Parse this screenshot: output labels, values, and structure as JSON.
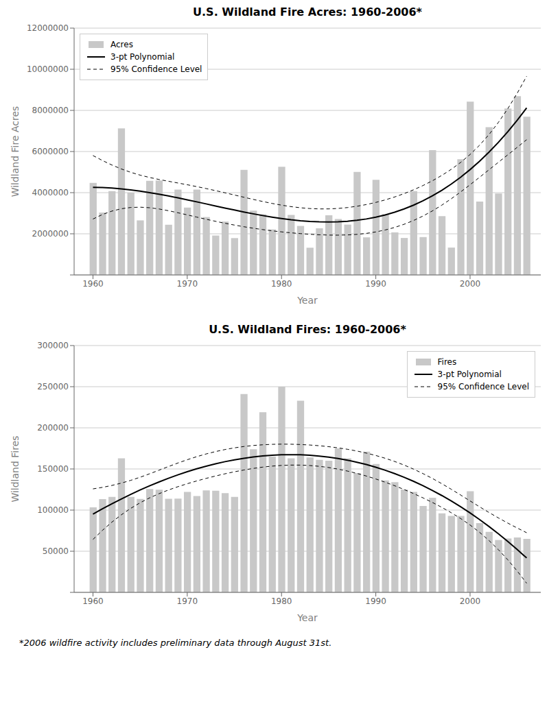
{
  "chart_data": [
    {
      "type": "bar",
      "title": "U.S. Wildland Fire Acres:  1960-2006*",
      "x_label": "Year",
      "y_label": "Wildland Fire Acres",
      "x": [
        1960,
        1961,
        1962,
        1963,
        1964,
        1965,
        1966,
        1967,
        1968,
        1969,
        1970,
        1971,
        1972,
        1973,
        1974,
        1975,
        1976,
        1977,
        1978,
        1979,
        1980,
        1981,
        1982,
        1983,
        1984,
        1985,
        1986,
        1987,
        1988,
        1989,
        1990,
        1991,
        1992,
        1993,
        1994,
        1995,
        1996,
        1997,
        1998,
        1999,
        2000,
        2001,
        2002,
        2003,
        2004,
        2005,
        2006
      ],
      "xlim": [
        1958.0,
        2007.5
      ],
      "xticks": [
        1960,
        1970,
        1980,
        1990,
        2000
      ],
      "ylim": [
        0,
        12000000
      ],
      "yticks": [
        {
          "value": 0,
          "label": null
        },
        2000000,
        4000000,
        6000000,
        8000000,
        10000000,
        12000000
      ],
      "grid": true,
      "legend": "upper left",
      "series": [
        {
          "name": "Acres",
          "type": "bar",
          "color": "#c8c8c8",
          "values": [
            4478000,
            3036000,
            4076000,
            7124000,
            4000000,
            2652000,
            4574000,
            4595000,
            2440000,
            4150000,
            3278000,
            4146000,
            2813000,
            1915000,
            2594000,
            1791000,
            5109000,
            3127000,
            2949000,
            2213000,
            5260000,
            2917000,
            2382000,
            1323000,
            2266000,
            2896000,
            2719000,
            2447000,
            5009000,
            1827000,
            4621000,
            2953000,
            2069000,
            1797000,
            4073000,
            1840000,
            6065000,
            2856000,
            1329000,
            5626000,
            8422000,
            3570000,
            7184000,
            3960000,
            8095000,
            8689000,
            7690000
          ]
        },
        {
          "name": "3-pt Polynomial",
          "type": "line",
          "color": "#000000",
          "line_style": "solid",
          "values": [
            4260540,
            4249540,
            4224060,
            4185370,
            4134760,
            4073500,
            4002860,
            3924120,
            3838540,
            3747410,
            3652000,
            3553600,
            3453450,
            3352850,
            3253070,
            3155370,
            3061050,
            2971370,
            2887610,
            2811030,
            2742920,
            2684550,
            2637190,
            2602120,
            2580610,
            2573940,
            2583390,
            2610210,
            2655700,
            2721120,
            2807760,
            2916880,
            3049760,
            3207660,
            3391880,
            3603680,
            3844340,
            4115130,
            4417320,
            4752190,
            5121020,
            5525080,
            5965640,
            6443980,
            6961370,
            7519090,
            8118410
          ]
        },
        {
          "name": "95% Confidence Level",
          "type": "line",
          "color": "#000000",
          "line_style": "dashed",
          "upper": [
            5803840,
            5562840,
            5345560,
            5154070,
            4989860,
            4852500,
            4738460,
            4641420,
            4554240,
            4470210,
            4384600,
            4294600,
            4199250,
            4098650,
            3993870,
            3886370,
            3778350,
            3672170,
            3570610,
            3476330,
            3392320,
            3321250,
            3265690,
            3227820,
            3209110,
            3210640,
            3232790,
            3275510,
            3338700,
            3421920,
            3525060,
            3647880,
            3790560,
            3953460,
            4137680,
            4344680,
            4576940,
            4837930,
            5133020,
            5469490,
            5856620,
            6304080,
            6820740,
            7412680,
            8082870,
            8832390,
            9661710
          ],
          "lower": [
            2717240,
            2936240,
            3102560,
            3216670,
            3279660,
            3294500,
            3267260,
            3206820,
            3122840,
            3024610,
            2919400,
            2812600,
            2707650,
            2607050,
            2512270,
            2424370,
            2343750,
            2270570,
            2204610,
            2145730,
            2093520,
            2047850,
            2008690,
            1976420,
            1952110,
            1937240,
            1933990,
            1944910,
            1972700,
            2020320,
            2090460,
            2185880,
            2308960,
            2461860,
            2646080,
            2862680,
            3111740,
            3392330,
            3701620,
            4034890,
            4385420,
            4746080,
            5110540,
            5475280,
            5839870,
            6205790,
            6575110
          ]
        }
      ]
    },
    {
      "type": "bar",
      "title": "U.S. Wildland Fires:  1960-2006*",
      "x_label": "Year",
      "y_label": "Wildland Fires",
      "x": [
        1960,
        1961,
        1962,
        1963,
        1964,
        1965,
        1966,
        1967,
        1968,
        1969,
        1970,
        1971,
        1972,
        1973,
        1974,
        1975,
        1976,
        1977,
        1978,
        1979,
        1980,
        1981,
        1982,
        1983,
        1984,
        1985,
        1986,
        1987,
        1988,
        1989,
        1990,
        1991,
        1992,
        1993,
        1994,
        1995,
        1996,
        1997,
        1998,
        1999,
        2000,
        2001,
        2002,
        2003,
        2004,
        2005,
        2006
      ],
      "xlim": [
        1958.0,
        2007.5
      ],
      "xticks": [
        1960,
        1970,
        1980,
        1990,
        2000
      ],
      "ylim": [
        0,
        300000
      ],
      "yticks": [
        {
          "value": 0,
          "label": null
        },
        50000,
        100000,
        150000,
        200000,
        250000,
        300000
      ],
      "grid": true,
      "legend": "upper right",
      "annotations": [
        "*2006 wildfire activity includes preliminary data through August 31st."
      ],
      "series": [
        {
          "name": "Fires",
          "type": "bar",
          "color": "#c8c8c8",
          "values": [
            103387,
            113256,
            116000,
            163000,
            116000,
            113510,
            125634,
            124751,
            113684,
            114000,
            122000,
            117000,
            124000,
            123500,
            120600,
            116000,
            241000,
            174000,
            219000,
            165000,
            250000,
            163000,
            233000,
            164000,
            161000,
            160000,
            175000,
            163000,
            145000,
            171000,
            156000,
            136000,
            134000,
            125000,
            122000,
            105000,
            115000,
            96000,
            93000,
            93000,
            122827,
            84079,
            73457,
            63629,
            65461,
            66753,
            65000
          ]
        },
        {
          "name": "3-pt Polynomial",
          "type": "line",
          "color": "#000000",
          "line_style": "solid",
          "values": [
            95057,
            101474,
            107623,
            113501,
            119102,
            124421,
            129454,
            134197,
            138643,
            142790,
            146632,
            150163,
            153380,
            156277,
            158850,
            161095,
            163005,
            164577,
            165808,
            166689,
            167219,
            167391,
            167202,
            166646,
            165718,
            164415,
            162731,
            160661,
            158200,
            155345,
            152089,
            148429,
            144360,
            139877,
            134976,
            129651,
            123898,
            117712,
            111089,
            104023,
            96510,
            88545,
            80122,
            71239,
            61891,
            52072,
            41777
          ]
        },
        {
          "name": "95% Confidence Level",
          "type": "line",
          "color": "#000000",
          "line_style": "dashed",
          "upper": [
            125774,
            127614,
            129945,
            132782,
            136122,
            139926,
            144094,
            148475,
            152889,
            157176,
            161213,
            164913,
            168225,
            171122,
            173595,
            175644,
            177281,
            178525,
            179401,
            179931,
            180144,
            180064,
            179713,
            179100,
            178229,
            177088,
            175656,
            173903,
            171793,
            169293,
            166365,
            162978,
            159105,
            154722,
            149821,
            144401,
            138479,
            132098,
            125335,
            118301,
            111150,
            104050,
            97142,
            90520,
            84213,
            78212,
            72494
          ],
          "lower": [
            64340,
            75334,
            85301,
            94220,
            102082,
            108916,
            114814,
            119919,
            124397,
            128404,
            132051,
            135413,
            138535,
            141432,
            144105,
            146546,
            148729,
            150629,
            152215,
            153447,
            154294,
            154718,
            154691,
            154192,
            153207,
            151742,
            149806,
            147419,
            144607,
            141397,
            137813,
            133880,
            129615,
            125032,
            120131,
            114901,
            109317,
            103326,
            96843,
            89745,
            81870,
            73040,
            63102,
            51958,
            39569,
            25932,
            11060
          ]
        }
      ]
    }
  ]
}
